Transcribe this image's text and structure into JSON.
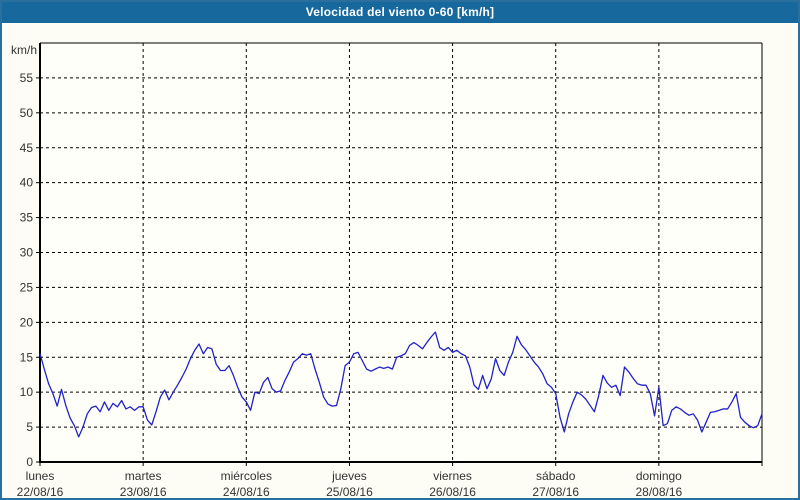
{
  "window": {
    "title": "Velocidad del viento 0-60 [km/h]"
  },
  "colors": {
    "titlebar_bg": "#17689d",
    "title_text": "#ffffff",
    "window_border": "#2b6f9f",
    "content_bg": "#fdfdf5",
    "plot_bg": "#fffffa",
    "axis": "#000000",
    "grid": "#000000",
    "tick_label": "#333333",
    "line": "#2121c8"
  },
  "chart_data": {
    "type": "line",
    "title": "Velocidad del viento 0-60 [km/h]",
    "ylabel": "km/h",
    "ylim": [
      0,
      60
    ],
    "yticks": [
      0,
      5,
      10,
      15,
      20,
      25,
      30,
      35,
      40,
      45,
      50,
      55
    ],
    "grid": "dashed",
    "legend": "none",
    "x_categories": [
      {
        "day": "lunes",
        "date": "22/08/16"
      },
      {
        "day": "martes",
        "date": "23/08/16"
      },
      {
        "day": "miércoles",
        "date": "24/08/16"
      },
      {
        "day": "jueves",
        "date": "25/08/16"
      },
      {
        "day": "viernes",
        "date": "26/08/16"
      },
      {
        "day": "sábado",
        "date": "27/08/16"
      },
      {
        "day": "domingo",
        "date": "28/08/16"
      }
    ],
    "samples_per_day": 24,
    "series": [
      {
        "name": "Velocidad del viento [km/h]",
        "values": [
          15.5,
          13.3,
          11.2,
          9.8,
          8.0,
          10.4,
          8.1,
          6.3,
          5.2,
          3.6,
          5.0,
          6.9,
          7.8,
          8.0,
          7.2,
          8.6,
          7.4,
          8.4,
          7.9,
          8.8,
          7.6,
          7.9,
          7.4,
          7.9,
          7.9,
          6.0,
          5.3,
          7.2,
          9.3,
          10.3,
          8.9,
          10.0,
          11.0,
          12.1,
          13.3,
          14.8,
          16.0,
          16.9,
          15.5,
          16.4,
          16.2,
          14.0,
          13.1,
          13.1,
          13.8,
          12.4,
          10.7,
          9.3,
          8.6,
          7.4,
          10.0,
          9.8,
          11.4,
          12.1,
          10.5,
          10.0,
          10.2,
          11.7,
          12.9,
          14.3,
          14.8,
          15.5,
          15.3,
          15.5,
          13.3,
          11.4,
          9.3,
          8.3,
          8.0,
          8.1,
          10.5,
          13.8,
          14.3,
          15.5,
          15.7,
          14.5,
          13.3,
          13.0,
          13.3,
          13.6,
          13.4,
          13.6,
          13.3,
          15.0,
          15.2,
          15.5,
          16.7,
          17.1,
          16.7,
          16.2,
          17.1,
          17.9,
          18.6,
          16.4,
          16.0,
          16.4,
          15.7,
          16.0,
          15.5,
          15.2,
          13.6,
          11.0,
          10.4,
          12.4,
          10.5,
          11.9,
          14.8,
          13.1,
          12.4,
          14.3,
          15.7,
          18.0,
          16.8,
          16.1,
          15.2,
          14.3,
          13.6,
          12.6,
          11.2,
          10.7,
          9.8,
          6.4,
          4.3,
          6.9,
          8.6,
          10.0,
          9.6,
          9.0,
          8.1,
          7.2,
          9.5,
          12.4,
          11.3,
          10.7,
          11.0,
          9.5,
          13.6,
          12.9,
          12.0,
          11.2,
          11.0,
          11.0,
          9.8,
          6.6,
          10.7,
          5.2,
          5.5,
          7.4,
          7.9,
          7.6,
          7.1,
          6.7,
          6.9,
          6.0,
          4.3,
          5.7,
          7.1,
          7.2,
          7.4,
          7.6,
          7.6,
          8.6,
          9.8,
          6.4,
          5.7,
          5.2,
          4.9,
          5.2,
          6.9
        ]
      }
    ]
  }
}
